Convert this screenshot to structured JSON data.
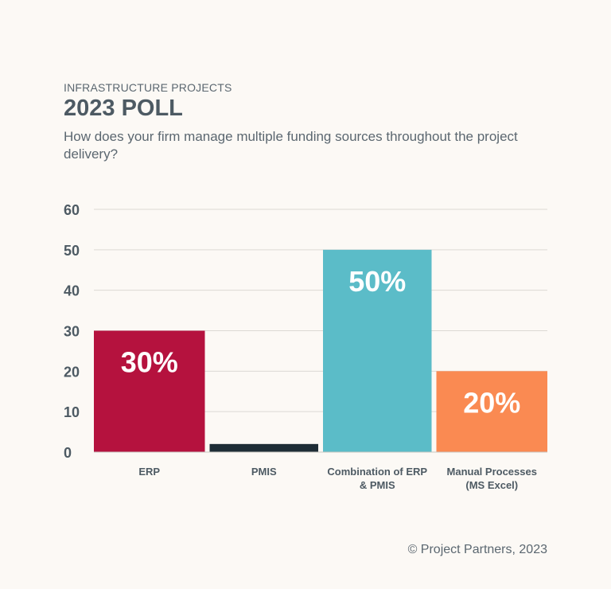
{
  "header": {
    "kicker": "INFRASTRUCTURE PROJECTS",
    "title": "2023 POLL",
    "question": "How does your firm manage multiple funding sources throughout the project delivery?"
  },
  "chart_data": {
    "type": "bar",
    "categories": [
      [
        "ERP"
      ],
      [
        "PMIS"
      ],
      [
        "Combination of ERP",
        "& PMIS"
      ],
      [
        "Manual Processes",
        "(MS Excel)"
      ]
    ],
    "values": [
      30,
      2,
      50,
      20
    ],
    "data_labels": [
      "30%",
      "",
      "50%",
      "20%"
    ],
    "colors": [
      "#b5123e",
      "#1e2d36",
      "#5bbcc8",
      "#fa8a52"
    ],
    "yticks": [
      0,
      10,
      20,
      30,
      40,
      50,
      60
    ],
    "ylim": [
      0,
      60
    ],
    "grid": true,
    "xlabel": "",
    "ylabel": ""
  },
  "footer": {
    "copyright": "© Project Partners, 2023"
  }
}
